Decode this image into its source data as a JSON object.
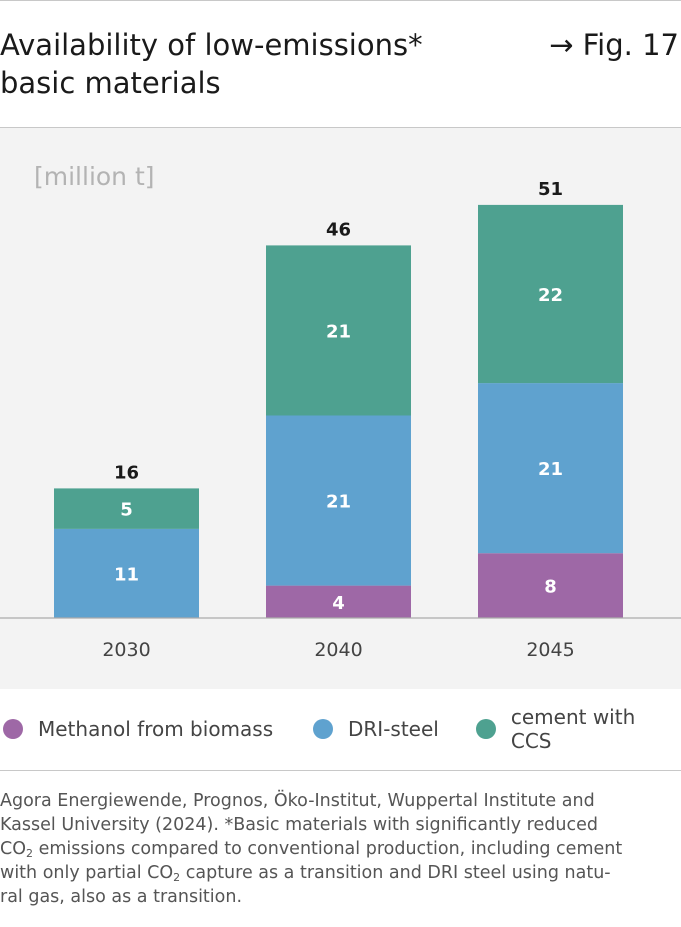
{
  "title": "Availability of low-emissions* basic materials",
  "fig_ref": "→ Fig. 17",
  "chart_data": {
    "type": "bar",
    "stacked": true,
    "unit_label": "[million t]",
    "categories": [
      "2030",
      "2040",
      "2045"
    ],
    "series": [
      {
        "name": "Methanol from biomass",
        "color": "#9e68a6",
        "values": [
          0,
          4,
          8
        ]
      },
      {
        "name": "DRI-steel",
        "color": "#5fa2cf",
        "values": [
          11,
          21,
          21
        ]
      },
      {
        "name": "cement with CCS",
        "color": "#4ea190",
        "values": [
          5,
          21,
          22
        ]
      }
    ],
    "totals": [
      16,
      46,
      51
    ],
    "legend_position": "bottom"
  },
  "legend": [
    {
      "label": "Methanol from biomass",
      "color": "#9e68a6"
    },
    {
      "label": "DRI-steel",
      "color": "#5fa2cf"
    },
    {
      "label": "cement with CCS",
      "color": "#4ea190"
    }
  ],
  "source": {
    "line1": "Agora Energiewende, Prognos, Öko-Institut, Wuppertal Institute and",
    "line2": "Kassel University (2024). *Basic materials with significantly reduced",
    "line3_pre": "CO",
    "line3_sub": "2",
    "line3_post": " emissions compared to conventional production, including cement",
    "line4_pre": "with only partial CO",
    "line4_sub": "2",
    "line4_post": " capture as a transition and DRI steel using natu-",
    "line5": "ral gas, also as a transition."
  }
}
